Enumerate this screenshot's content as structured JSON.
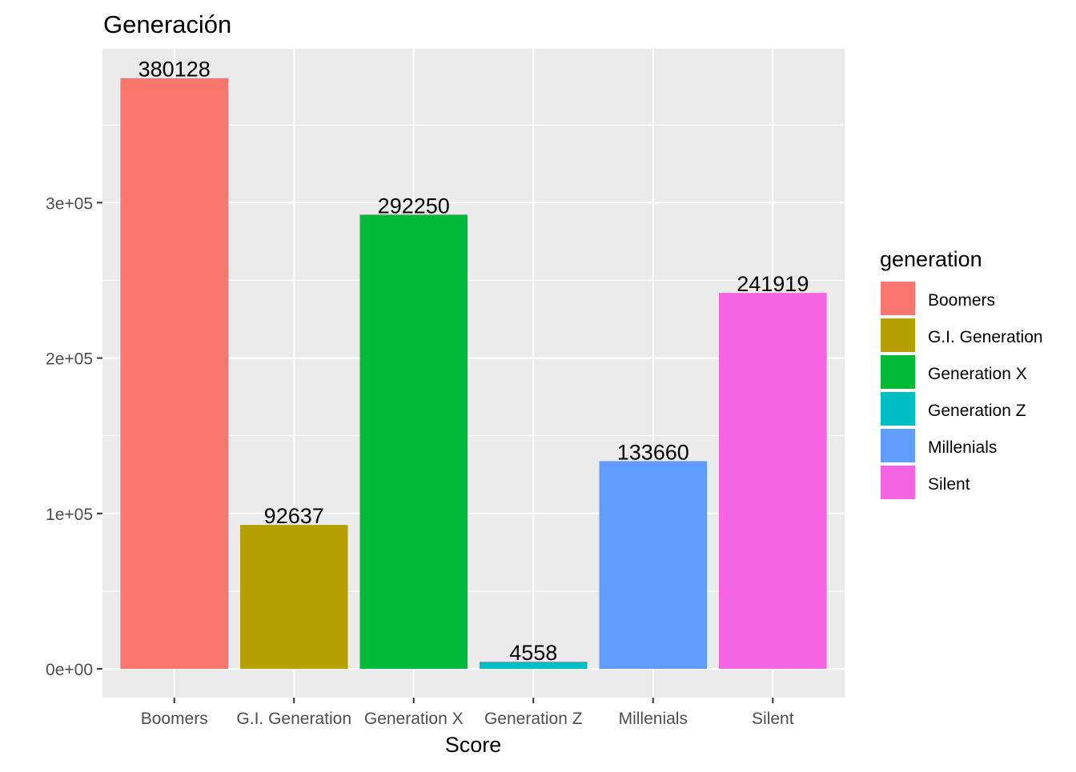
{
  "chart_data": {
    "type": "bar",
    "title": "Generación",
    "xlabel": "Score",
    "ylabel": "",
    "categories": [
      "Boomers",
      "G.I. Generation",
      "Generation X",
      "Generation Z",
      "Millenials",
      "Silent"
    ],
    "values": [
      380128,
      92637,
      292250,
      4558,
      133660,
      241919
    ],
    "data_labels": [
      "380128",
      "92637",
      "292250",
      "4558",
      "133660",
      "241919"
    ],
    "colors": [
      "#F8766D",
      "#B79F00",
      "#00BA38",
      "#00BFC4",
      "#619CFF",
      "#F564E3"
    ],
    "ylim": [
      -18500,
      399000
    ],
    "yticks": [
      0,
      100000,
      200000,
      300000
    ],
    "ytick_labels": [
      "0e+00",
      "1e+05",
      "2e+05",
      "3e+05"
    ],
    "grid": true,
    "panel_background": "#EBEBEB",
    "legend": {
      "title": "generation",
      "position": "right",
      "entries": [
        "Boomers",
        "G.I. Generation",
        "Generation X",
        "Generation Z",
        "Millenials",
        "Silent"
      ]
    }
  }
}
